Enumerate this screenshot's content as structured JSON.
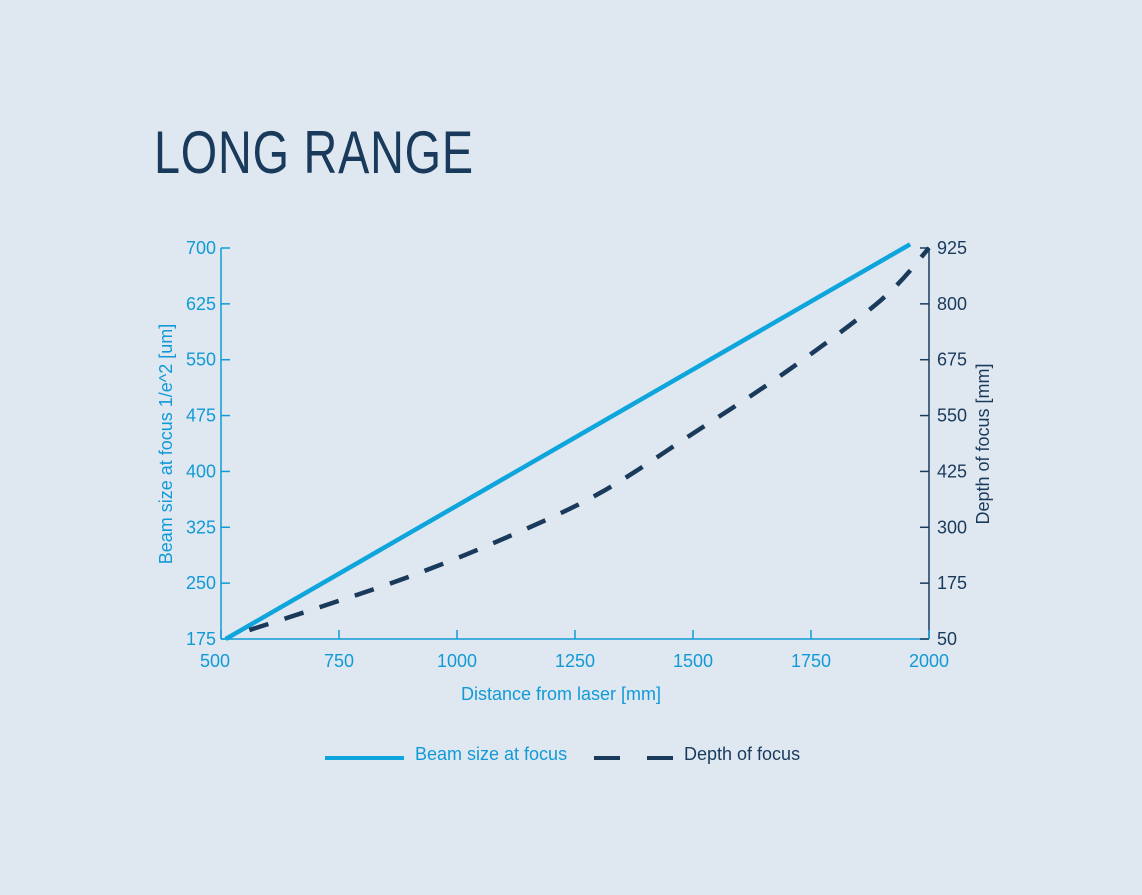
{
  "chart_data": {
    "type": "line",
    "title": "LONG RANGE",
    "xlabel": "Distance from laser [mm]",
    "ylabel": "Beam size at focus 1/e^2 [um]",
    "y2label": "Depth of focus [mm]",
    "xlim": [
      500,
      2000
    ],
    "ylim": [
      175,
      700
    ],
    "y2lim": [
      50,
      925
    ],
    "x_ticks": [
      500,
      750,
      1000,
      1250,
      1500,
      1750,
      2000
    ],
    "y_ticks": [
      175,
      250,
      325,
      400,
      475,
      550,
      625,
      700
    ],
    "y2_ticks": [
      50,
      175,
      300,
      425,
      550,
      675,
      800,
      925
    ],
    "grid": false,
    "legend_position": "bottom",
    "series": [
      {
        "name": "Beam size at focus",
        "axis": "left",
        "style": "solid",
        "color": "#0ea5dc",
        "x": [
          510,
          1960
        ],
        "y": [
          175,
          705
        ]
      },
      {
        "name": "Depth of focus",
        "axis": "right",
        "style": "dashed",
        "color": "#1a3a5c",
        "x": [
          560,
          700,
          900,
          1100,
          1300,
          1500,
          1700,
          1900,
          2000
        ],
        "y": [
          70,
          118,
          190,
          275,
          375,
          510,
          650,
          810,
          925
        ]
      }
    ]
  }
}
